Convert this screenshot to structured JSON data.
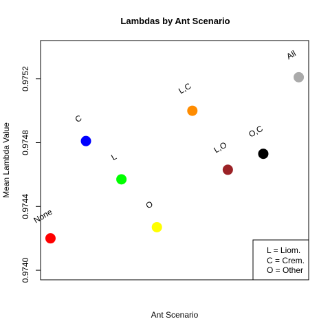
{
  "chart_data": {
    "type": "scatter",
    "title": "Lambdas by Ant Scenario",
    "xlabel": "Ant Scenario",
    "ylabel": "Mean Lambda Value",
    "ylim": [
      0.97394,
      0.97544
    ],
    "yticks": [
      "0.9740",
      "0.9744",
      "0.9748",
      "0.9752"
    ],
    "ytick_values": [
      0.974,
      0.9744,
      0.9748,
      0.9752
    ],
    "grid": false,
    "legend_placement": "bottom-right",
    "points": [
      {
        "label": "None",
        "x": 1,
        "y": 0.9742,
        "color": "#ff0000"
      },
      {
        "label": "C",
        "x": 2,
        "y": 0.97481,
        "color": "#0000ff"
      },
      {
        "label": "L",
        "x": 3,
        "y": 0.97457,
        "color": "#00ff00"
      },
      {
        "label": "O",
        "x": 4,
        "y": 0.97427,
        "color": "#ffff00"
      },
      {
        "label": "L,C",
        "x": 5,
        "y": 0.975,
        "color": "#ff8c00"
      },
      {
        "label": "L,O",
        "x": 6,
        "y": 0.97463,
        "color": "#9b2226"
      },
      {
        "label": "O,C",
        "x": 7,
        "y": 0.97473,
        "color": "#000000"
      },
      {
        "label": "All",
        "x": 8,
        "y": 0.97521,
        "color": "#aaaaaa"
      }
    ],
    "xlim": [
      0.72,
      8.28
    ],
    "legend": [
      "L = Liom.",
      "C = Crem.",
      "O = Other"
    ]
  }
}
